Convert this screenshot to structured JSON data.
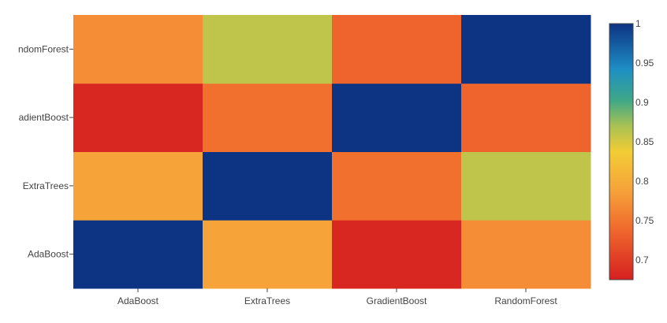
{
  "chart_data": {
    "type": "heatmap",
    "x_categories": [
      "AdaBoost",
      "ExtraTrees",
      "GradientBoost",
      "RandomForest"
    ],
    "y_categories": [
      "AdaBoost",
      "ExtraTrees",
      "GradientBoost",
      "RandomForest"
    ],
    "y_tick_labels": [
      "AdaBoost",
      "ExtraTrees",
      "adientBoost",
      "ndomForest"
    ],
    "z": [
      [
        1.0,
        0.79,
        0.68,
        0.77
      ],
      [
        0.79,
        1.0,
        0.745,
        0.86
      ],
      [
        0.68,
        0.745,
        1.0,
        0.735
      ],
      [
        0.77,
        0.86,
        0.735,
        1.0
      ]
    ],
    "zmin": 0.675,
    "zmax": 1.0,
    "colorbar_ticks": [
      "1",
      "0.95",
      "0.9",
      "0.85",
      "0.8",
      "0.75",
      "0.7"
    ],
    "colorscale": [
      [
        0.0,
        "#d62020"
      ],
      [
        0.2,
        "#f06a2d"
      ],
      [
        0.35,
        "#f6a33a"
      ],
      [
        0.5,
        "#f2cc35"
      ],
      [
        0.6,
        "#a9c253"
      ],
      [
        0.7,
        "#3fa887"
      ],
      [
        0.82,
        "#1e8fc4"
      ],
      [
        1.0,
        "#0d3383"
      ]
    ],
    "title": "",
    "xlabel": "",
    "ylabel": ""
  }
}
